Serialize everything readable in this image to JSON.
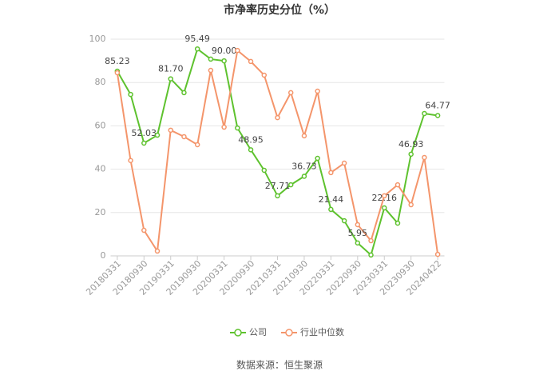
{
  "chart_data": {
    "type": "line",
    "title": "市净率历史分位（%）",
    "source": "数据来源：恒生聚源",
    "categories": [
      "20180331",
      null,
      "20180930",
      null,
      "20190331",
      null,
      "20190930",
      null,
      "20200331",
      null,
      "20200930",
      null,
      "20210331",
      null,
      "20210930",
      null,
      "20220331",
      null,
      "20220930",
      null,
      "20230331",
      null,
      "20230930",
      null,
      "20240422"
    ],
    "series": [
      {
        "name": "公司",
        "color": "#5ec22e",
        "values": [
          85.23,
          74.5,
          52.03,
          55.7,
          81.7,
          75.3,
          95.49,
          90.8,
          90.0,
          59,
          48.95,
          39.5,
          27.71,
          32.8,
          36.73,
          45,
          21.44,
          16.2,
          5.95,
          0.4,
          22.16,
          15.1,
          46.93,
          65.7,
          64.77
        ],
        "value_labels": [
          "85.23",
          null,
          "52.03",
          null,
          "81.70",
          null,
          "95.49",
          null,
          "90.00",
          null,
          "48.95",
          null,
          "27.71",
          null,
          "36.73",
          null,
          "21.44",
          null,
          "5.95",
          null,
          "22.16",
          null,
          "46.93",
          null,
          "64.77"
        ]
      },
      {
        "name": "行业中位数",
        "color": "#f4956b",
        "values": [
          84.5,
          44,
          11.8,
          2.2,
          58,
          55,
          51.3,
          85.6,
          59.4,
          94.8,
          89.7,
          83.4,
          63.8,
          75.3,
          55.4,
          76,
          38.4,
          42.8,
          14.4,
          7,
          27.7,
          32.8,
          23.6,
          45.4,
          0.7
        ]
      }
    ],
    "ylim": [
      0,
      100
    ],
    "yticks": [
      0,
      20,
      40,
      60,
      80,
      100
    ],
    "grid": true
  }
}
